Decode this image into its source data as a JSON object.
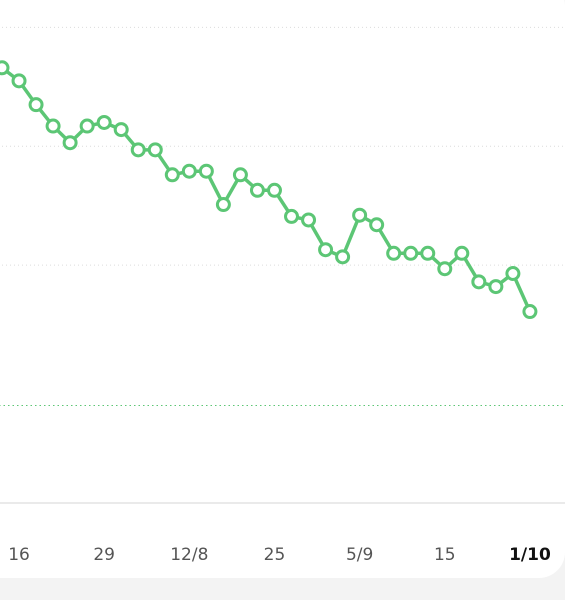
{
  "chart_data": {
    "type": "line",
    "categories": [
      null,
      "16",
      null,
      null,
      null,
      null,
      "29",
      null,
      null,
      null,
      null,
      "12/8",
      null,
      null,
      null,
      null,
      "25",
      null,
      null,
      null,
      null,
      "5/9",
      null,
      null,
      null,
      null,
      "15",
      null,
      null,
      null,
      null,
      "1/10"
    ],
    "series": [
      {
        "color": "#5cc675",
        "values": [
          3.66,
          3.55,
          3.35,
          3.17,
          3.03,
          3.17,
          3.2,
          3.14,
          2.97,
          2.97,
          2.76,
          2.79,
          2.79,
          2.51,
          2.76,
          2.63,
          2.63,
          2.41,
          2.38,
          2.13,
          2.07,
          2.42,
          2.34,
          2.1,
          2.1,
          2.1,
          1.97,
          2.1,
          1.86,
          1.82,
          1.93,
          1.61
        ]
      }
    ],
    "ylim": [
      0,
      4.23
    ],
    "gridlines": [
      2,
      3,
      4
    ],
    "target": 0.82,
    "grid": true
  }
}
